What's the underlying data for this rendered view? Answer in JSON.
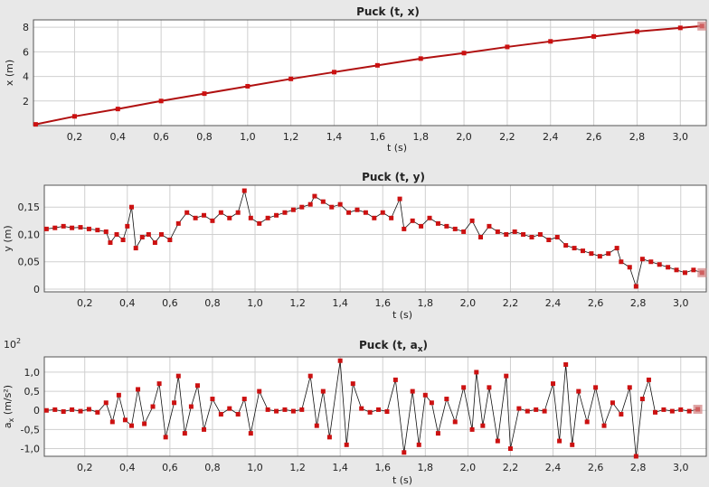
{
  "chart_data": [
    {
      "type": "scatter",
      "title": "Puck  (t, x)",
      "xlabel": "t (s)",
      "ylabel": "x (m)",
      "xlim": [
        0.01,
        3.12
      ],
      "ylim": [
        0,
        8.6
      ],
      "xticks": [
        "0,2",
        "0,4",
        "0,6",
        "0,8",
        "1,0",
        "1,2",
        "1,4",
        "1,6",
        "1,8",
        "2,0",
        "2,2",
        "2,4",
        "2,6",
        "2,8",
        "3,0"
      ],
      "yticks": [
        "2",
        "4",
        "6",
        "8"
      ],
      "grid": true,
      "series": [
        {
          "color": "#cc1111",
          "connected": true,
          "points": [
            [
              0.02,
              0.1
            ],
            [
              0.2,
              0.75
            ],
            [
              0.4,
              1.35
            ],
            [
              0.6,
              2.0
            ],
            [
              0.8,
              2.6
            ],
            [
              1.0,
              3.2
            ],
            [
              1.2,
              3.8
            ],
            [
              1.4,
              4.35
            ],
            [
              1.6,
              4.9
            ],
            [
              1.8,
              5.45
            ],
            [
              2.0,
              5.9
            ],
            [
              2.2,
              6.4
            ],
            [
              2.4,
              6.85
            ],
            [
              2.6,
              7.25
            ],
            [
              2.8,
              7.65
            ],
            [
              3.0,
              7.95
            ],
            [
              3.1,
              8.1
            ]
          ]
        }
      ]
    },
    {
      "type": "scatter",
      "title": "Puck  (t, y)",
      "xlabel": "t (s)",
      "ylabel": "y (m)",
      "xlim": [
        0.01,
        3.12
      ],
      "ylim": [
        -0.005,
        0.19
      ],
      "xticks": [
        "0,2",
        "0,4",
        "0,6",
        "0,8",
        "1,0",
        "1,2",
        "1,4",
        "1,6",
        "1,8",
        "2,0",
        "2,2",
        "2,4",
        "2,6",
        "2,8",
        "3,0"
      ],
      "yticks": [
        "0",
        "0,05",
        "0,10",
        "0,15"
      ],
      "grid": true,
      "series": [
        {
          "color": "#cc1111",
          "connected": true,
          "points": [
            [
              0.02,
              0.11
            ],
            [
              0.06,
              0.112
            ],
            [
              0.1,
              0.115
            ],
            [
              0.14,
              0.112
            ],
            [
              0.18,
              0.113
            ],
            [
              0.22,
              0.11
            ],
            [
              0.26,
              0.108
            ],
            [
              0.3,
              0.105
            ],
            [
              0.32,
              0.085
            ],
            [
              0.35,
              0.1
            ],
            [
              0.38,
              0.09
            ],
            [
              0.4,
              0.115
            ],
            [
              0.42,
              0.15
            ],
            [
              0.44,
              0.075
            ],
            [
              0.47,
              0.095
            ],
            [
              0.5,
              0.1
            ],
            [
              0.53,
              0.085
            ],
            [
              0.56,
              0.1
            ],
            [
              0.6,
              0.09
            ],
            [
              0.64,
              0.12
            ],
            [
              0.68,
              0.14
            ],
            [
              0.72,
              0.13
            ],
            [
              0.76,
              0.135
            ],
            [
              0.8,
              0.125
            ],
            [
              0.84,
              0.14
            ],
            [
              0.88,
              0.13
            ],
            [
              0.92,
              0.14
            ],
            [
              0.95,
              0.18
            ],
            [
              0.98,
              0.13
            ],
            [
              1.02,
              0.12
            ],
            [
              1.06,
              0.13
            ],
            [
              1.1,
              0.135
            ],
            [
              1.14,
              0.14
            ],
            [
              1.18,
              0.145
            ],
            [
              1.22,
              0.15
            ],
            [
              1.26,
              0.155
            ],
            [
              1.28,
              0.17
            ],
            [
              1.32,
              0.16
            ],
            [
              1.36,
              0.15
            ],
            [
              1.4,
              0.155
            ],
            [
              1.44,
              0.14
            ],
            [
              1.48,
              0.145
            ],
            [
              1.52,
              0.14
            ],
            [
              1.56,
              0.13
            ],
            [
              1.6,
              0.14
            ],
            [
              1.64,
              0.13
            ],
            [
              1.68,
              0.165
            ],
            [
              1.7,
              0.11
            ],
            [
              1.74,
              0.125
            ],
            [
              1.78,
              0.115
            ],
            [
              1.82,
              0.13
            ],
            [
              1.86,
              0.12
            ],
            [
              1.9,
              0.115
            ],
            [
              1.94,
              0.11
            ],
            [
              1.98,
              0.105
            ],
            [
              2.02,
              0.125
            ],
            [
              2.06,
              0.095
            ],
            [
              2.1,
              0.115
            ],
            [
              2.14,
              0.105
            ],
            [
              2.18,
              0.1
            ],
            [
              2.22,
              0.105
            ],
            [
              2.26,
              0.1
            ],
            [
              2.3,
              0.095
            ],
            [
              2.34,
              0.1
            ],
            [
              2.38,
              0.09
            ],
            [
              2.42,
              0.095
            ],
            [
              2.46,
              0.08
            ],
            [
              2.5,
              0.075
            ],
            [
              2.54,
              0.07
            ],
            [
              2.58,
              0.065
            ],
            [
              2.62,
              0.06
            ],
            [
              2.66,
              0.065
            ],
            [
              2.7,
              0.075
            ],
            [
              2.72,
              0.05
            ],
            [
              2.76,
              0.04
            ],
            [
              2.79,
              0.005
            ],
            [
              2.82,
              0.055
            ],
            [
              2.86,
              0.05
            ],
            [
              2.9,
              0.045
            ],
            [
              2.94,
              0.04
            ],
            [
              2.98,
              0.035
            ],
            [
              3.02,
              0.03
            ],
            [
              3.06,
              0.035
            ],
            [
              3.1,
              0.03
            ]
          ]
        }
      ]
    },
    {
      "type": "scatter",
      "title": "Puck  (t, a",
      "title_sub": "x",
      "title_end": ")",
      "exponent": "10",
      "exponent_power": "2",
      "xlabel": "t (s)",
      "ylabel": "a",
      "ylabel_sub": "x",
      "ylabel_end": " (m/s²)",
      "xlim": [
        0.01,
        3.12
      ],
      "ylim": [
        -1.2,
        1.4
      ],
      "xticks": [
        "0,2",
        "0,4",
        "0,6",
        "0,8",
        "1,0",
        "1,2",
        "1,4",
        "1,6",
        "1,8",
        "2,0",
        "2,2",
        "2,4",
        "2,6",
        "2,8",
        "3,0"
      ],
      "yticks": [
        "-1,0",
        "-0,5",
        "0",
        "0,5",
        "1,0"
      ],
      "grid": true,
      "series": [
        {
          "color": "#cc1111",
          "connected": true,
          "points": [
            [
              0.02,
              0
            ],
            [
              0.06,
              0.02
            ],
            [
              0.1,
              -0.03
            ],
            [
              0.14,
              0.02
            ],
            [
              0.18,
              -0.02
            ],
            [
              0.22,
              0.03
            ],
            [
              0.26,
              -0.05
            ],
            [
              0.3,
              0.2
            ],
            [
              0.33,
              -0.3
            ],
            [
              0.36,
              0.4
            ],
            [
              0.39,
              -0.25
            ],
            [
              0.42,
              -0.4
            ],
            [
              0.45,
              0.55
            ],
            [
              0.48,
              -0.35
            ],
            [
              0.52,
              0.1
            ],
            [
              0.55,
              0.7
            ],
            [
              0.58,
              -0.7
            ],
            [
              0.62,
              0.2
            ],
            [
              0.64,
              0.9
            ],
            [
              0.67,
              -0.6
            ],
            [
              0.7,
              0.1
            ],
            [
              0.73,
              0.65
            ],
            [
              0.76,
              -0.5
            ],
            [
              0.8,
              0.3
            ],
            [
              0.84,
              -0.1
            ],
            [
              0.88,
              0.05
            ],
            [
              0.92,
              -0.1
            ],
            [
              0.95,
              0.3
            ],
            [
              0.98,
              -0.6
            ],
            [
              1.02,
              0.5
            ],
            [
              1.06,
              0.02
            ],
            [
              1.1,
              -0.02
            ],
            [
              1.14,
              0.02
            ],
            [
              1.18,
              -0.02
            ],
            [
              1.22,
              0.02
            ],
            [
              1.26,
              0.9
            ],
            [
              1.29,
              -0.4
            ],
            [
              1.32,
              0.5
            ],
            [
              1.35,
              -0.7
            ],
            [
              1.4,
              1.3
            ],
            [
              1.43,
              -0.9
            ],
            [
              1.46,
              0.7
            ],
            [
              1.5,
              0.05
            ],
            [
              1.54,
              -0.05
            ],
            [
              1.58,
              0.02
            ],
            [
              1.62,
              -0.03
            ],
            [
              1.66,
              0.8
            ],
            [
              1.7,
              -1.1
            ],
            [
              1.74,
              0.5
            ],
            [
              1.77,
              -0.9
            ],
            [
              1.8,
              0.4
            ],
            [
              1.83,
              0.2
            ],
            [
              1.86,
              -0.6
            ],
            [
              1.9,
              0.3
            ],
            [
              1.94,
              -0.3
            ],
            [
              1.98,
              0.6
            ],
            [
              2.02,
              -0.5
            ],
            [
              2.04,
              1.0
            ],
            [
              2.07,
              -0.4
            ],
            [
              2.1,
              0.6
            ],
            [
              2.14,
              -0.8
            ],
            [
              2.18,
              0.9
            ],
            [
              2.2,
              -1.0
            ],
            [
              2.24,
              0.05
            ],
            [
              2.28,
              -0.02
            ],
            [
              2.32,
              0.02
            ],
            [
              2.36,
              -0.02
            ],
            [
              2.4,
              0.7
            ],
            [
              2.43,
              -0.8
            ],
            [
              2.46,
              1.2
            ],
            [
              2.49,
              -0.9
            ],
            [
              2.52,
              0.5
            ],
            [
              2.56,
              -0.3
            ],
            [
              2.6,
              0.6
            ],
            [
              2.64,
              -0.4
            ],
            [
              2.68,
              0.2
            ],
            [
              2.72,
              -0.1
            ],
            [
              2.76,
              0.6
            ],
            [
              2.79,
              -1.2
            ],
            [
              2.82,
              0.3
            ],
            [
              2.85,
              0.8
            ],
            [
              2.88,
              -0.05
            ],
            [
              2.92,
              0.02
            ],
            [
              2.96,
              -0.02
            ],
            [
              3.0,
              0.02
            ],
            [
              3.04,
              -0.02
            ],
            [
              3.08,
              0.03
            ]
          ]
        }
      ]
    }
  ]
}
